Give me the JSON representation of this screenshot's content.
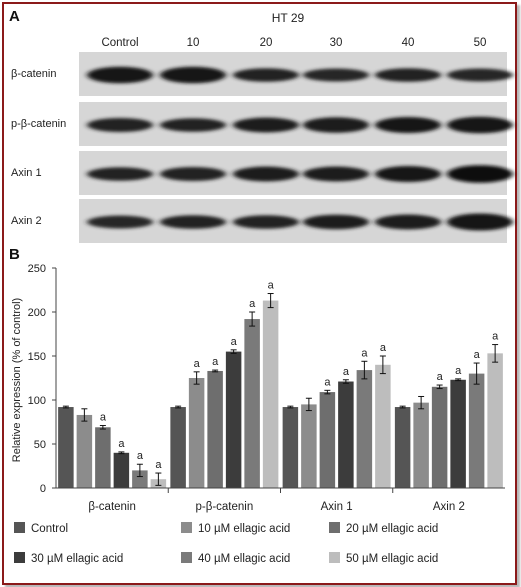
{
  "colors": {
    "border": "#8b1a1a",
    "series": [
      "#555555",
      "#8c8c8c",
      "#6e6e6e",
      "#3c3c3c",
      "#7a7a7a",
      "#bdbdbd"
    ]
  },
  "panel_a": {
    "label": "A",
    "cell_line": "HT 29",
    "lanes": [
      "Control",
      "10",
      "20",
      "30",
      "40",
      "50"
    ],
    "blots": [
      {
        "name": "β-catenin",
        "intensity": [
          0.85,
          0.85,
          0.55,
          0.5,
          0.55,
          0.5
        ]
      },
      {
        "name": "p-β-catenin",
        "intensity": [
          0.6,
          0.55,
          0.7,
          0.75,
          0.8,
          0.85
        ]
      },
      {
        "name": "Axin 1",
        "intensity": [
          0.55,
          0.6,
          0.7,
          0.7,
          0.8,
          0.95
        ]
      },
      {
        "name": "Axin 2",
        "intensity": [
          0.5,
          0.55,
          0.55,
          0.65,
          0.7,
          0.9
        ]
      }
    ]
  },
  "panel_b": {
    "label": "B"
  },
  "chart_data": {
    "type": "bar",
    "title": "",
    "xlabel": "",
    "ylabel": "Relative expression (% of control)",
    "ylim": [
      0,
      250
    ],
    "yticks": [
      0,
      50,
      100,
      150,
      200,
      250
    ],
    "categories": [
      "β-catenin",
      "p-β-catenin",
      "Axin 1",
      "Axin 2"
    ],
    "series": [
      {
        "name": "Control",
        "values": [
          92,
          92,
          92,
          92
        ],
        "errors": [
          1,
          1,
          1,
          1
        ],
        "sig": [
          "",
          "",
          "",
          ""
        ]
      },
      {
        "name": "10 µM ellagic acid",
        "values": [
          83,
          125,
          95,
          97
        ],
        "errors": [
          7,
          7,
          7,
          7
        ],
        "sig": [
          "",
          "a",
          "",
          ""
        ]
      },
      {
        "name": "20 µM ellagic acid",
        "values": [
          69,
          133,
          109,
          115
        ],
        "errors": [
          2,
          1,
          2,
          2
        ],
        "sig": [
          "a",
          "a",
          "a",
          "a"
        ]
      },
      {
        "name": "30 µM ellagic acid",
        "values": [
          40,
          155,
          121,
          123
        ],
        "errors": [
          1,
          2,
          2,
          1
        ],
        "sig": [
          "a",
          "a",
          "a",
          "a"
        ]
      },
      {
        "name": "40 µM ellagic acid",
        "values": [
          20,
          192,
          134,
          130
        ],
        "errors": [
          7,
          8,
          10,
          12
        ],
        "sig": [
          "a",
          "a",
          "a",
          "a"
        ]
      },
      {
        "name": "50 µM ellagic acid",
        "values": [
          10,
          213,
          140,
          153
        ],
        "errors": [
          7,
          8,
          10,
          10
        ],
        "sig": [
          "a",
          "a",
          "a",
          "a"
        ]
      }
    ],
    "legend_position": "bottom",
    "grid": false
  }
}
